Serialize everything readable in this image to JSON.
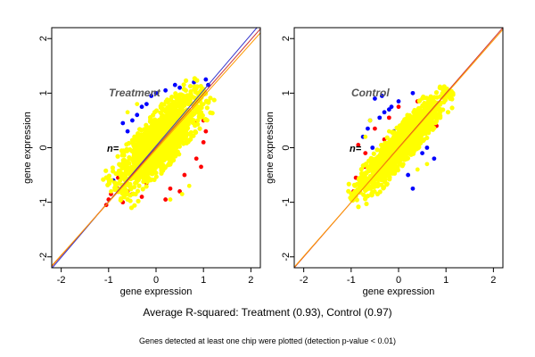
{
  "chart_data": [
    {
      "type": "scatter",
      "panel_label": "Treatment",
      "n_label": "n=",
      "xlabel": "gene expression",
      "ylabel": "gene expression",
      "xlim": [
        -2.2,
        2.2
      ],
      "ylim": [
        -2.2,
        2.2
      ],
      "xticks": [
        -2,
        -1,
        0,
        1,
        2
      ],
      "yticks": [
        -2,
        -1,
        0,
        1,
        2
      ],
      "grid": false,
      "lines": [
        {
          "color": "#3333cc",
          "slope": 1.02,
          "intercept": 0.03
        },
        {
          "color": "#cc3333",
          "slope": 0.99,
          "intercept": 0.0
        },
        {
          "color": "#ff9900",
          "slope": 0.97,
          "intercept": -0.03
        }
      ],
      "series": [
        {
          "color": "#0000ff",
          "points": [
            [
              -0.4,
              0.6
            ],
            [
              -0.5,
              0.5
            ],
            [
              -0.7,
              0.45
            ],
            [
              -0.3,
              0.75
            ],
            [
              -0.1,
              0.95
            ],
            [
              0.2,
              1.05
            ],
            [
              0.5,
              1.1
            ],
            [
              0.8,
              1.2
            ],
            [
              1.05,
              1.25
            ],
            [
              1.1,
              1.15
            ],
            [
              -0.9,
              -0.6
            ],
            [
              -0.6,
              0.3
            ],
            [
              0.0,
              1.0
            ],
            [
              0.4,
              1.15
            ],
            [
              -0.2,
              0.8
            ]
          ]
        },
        {
          "color": "#ff0000",
          "points": [
            [
              -1.05,
              -1.05
            ],
            [
              -0.95,
              -0.85
            ],
            [
              -0.8,
              -0.75
            ],
            [
              -0.7,
              -1.0
            ],
            [
              -0.5,
              -0.85
            ],
            [
              -0.3,
              -0.9
            ],
            [
              0.3,
              -0.75
            ],
            [
              0.6,
              -0.5
            ],
            [
              0.85,
              -0.2
            ],
            [
              1.0,
              0.1
            ],
            [
              1.0,
              0.5
            ],
            [
              -0.8,
              -0.55
            ],
            [
              -0.6,
              -0.8
            ],
            [
              0.5,
              -0.8
            ],
            [
              0.85,
              0.45
            ],
            [
              0.95,
              -0.35
            ],
            [
              -1.0,
              -0.95
            ],
            [
              0.2,
              -0.95
            ],
            [
              -0.2,
              -0.65
            ],
            [
              1.05,
              0.3
            ]
          ]
        },
        {
          "color": "#ffff00",
          "cloud": {
            "cx": 0.08,
            "cy": 0.12,
            "major": 1.35,
            "minor": 0.46,
            "angle_deg": 45
          },
          "extra_points": [
            [
              0.3,
              -0.95
            ],
            [
              0.55,
              -0.85
            ],
            [
              -0.6,
              0.65
            ],
            [
              -0.4,
              0.8
            ],
            [
              0.7,
              -0.7
            ],
            [
              -0.95,
              -0.8
            ],
            [
              1.0,
              0.8
            ]
          ]
        }
      ]
    },
    {
      "type": "scatter",
      "panel_label": "Control",
      "n_label": "n=",
      "xlabel": "gene expression",
      "ylabel": "gene expression",
      "xlim": [
        -2.2,
        2.2
      ],
      "ylim": [
        -2.2,
        2.2
      ],
      "xticks": [
        -2,
        -1,
        0,
        1,
        2
      ],
      "yticks": [
        -2,
        -1,
        0,
        1,
        2
      ],
      "grid": false,
      "lines": [
        {
          "color": "#cc3333",
          "slope": 1.0,
          "intercept": 0.0
        },
        {
          "color": "#ff9900",
          "slope": 0.99,
          "intercept": -0.01
        }
      ],
      "series": [
        {
          "color": "#0000ff",
          "points": [
            [
              -0.35,
              0.95
            ],
            [
              -0.5,
              0.9
            ],
            [
              -0.3,
              0.65
            ],
            [
              -0.2,
              0.7
            ],
            [
              -0.6,
              0.5
            ],
            [
              -0.75,
              0.2
            ],
            [
              -0.55,
              0.0
            ],
            [
              -0.4,
              0.55
            ],
            [
              0.0,
              0.85
            ],
            [
              0.3,
              1.0
            ],
            [
              -0.1,
              0.3
            ],
            [
              0.2,
              -0.5
            ],
            [
              0.3,
              -0.75
            ],
            [
              0.5,
              -0.1
            ],
            [
              0.6,
              0.0
            ],
            [
              0.75,
              -0.2
            ],
            [
              -0.15,
              0.75
            ],
            [
              -0.65,
              0.35
            ]
          ]
        },
        {
          "color": "#ff0000",
          "points": [
            [
              -0.95,
              -0.8
            ],
            [
              -0.9,
              -0.55
            ],
            [
              -0.7,
              -0.35
            ],
            [
              -0.55,
              -0.55
            ],
            [
              -0.4,
              -0.3
            ],
            [
              -0.3,
              0.15
            ],
            [
              -0.2,
              0.55
            ],
            [
              0.0,
              0.75
            ],
            [
              0.4,
              0.85
            ],
            [
              -0.85,
              0.05
            ],
            [
              -0.7,
              -0.1
            ],
            [
              0.7,
              0.5
            ],
            [
              0.8,
              0.4
            ],
            [
              -0.5,
              0.35
            ]
          ]
        },
        {
          "color": "#ffff00",
          "cloud": {
            "cx": 0.05,
            "cy": 0.05,
            "major": 1.45,
            "minor": 0.3,
            "angle_deg": 45
          },
          "extra_points": [
            [
              -0.2,
              0.3
            ],
            [
              -0.7,
              0.2
            ],
            [
              -0.6,
              0.5
            ],
            [
              0.4,
              -0.4
            ],
            [
              0.6,
              -0.3
            ]
          ]
        }
      ]
    }
  ],
  "caption_main": "Average R-squared: Treatment (0.93), Control (0.97)",
  "caption_note": "Genes detected at least one chip were plotted (detection p-value < 0.01)"
}
